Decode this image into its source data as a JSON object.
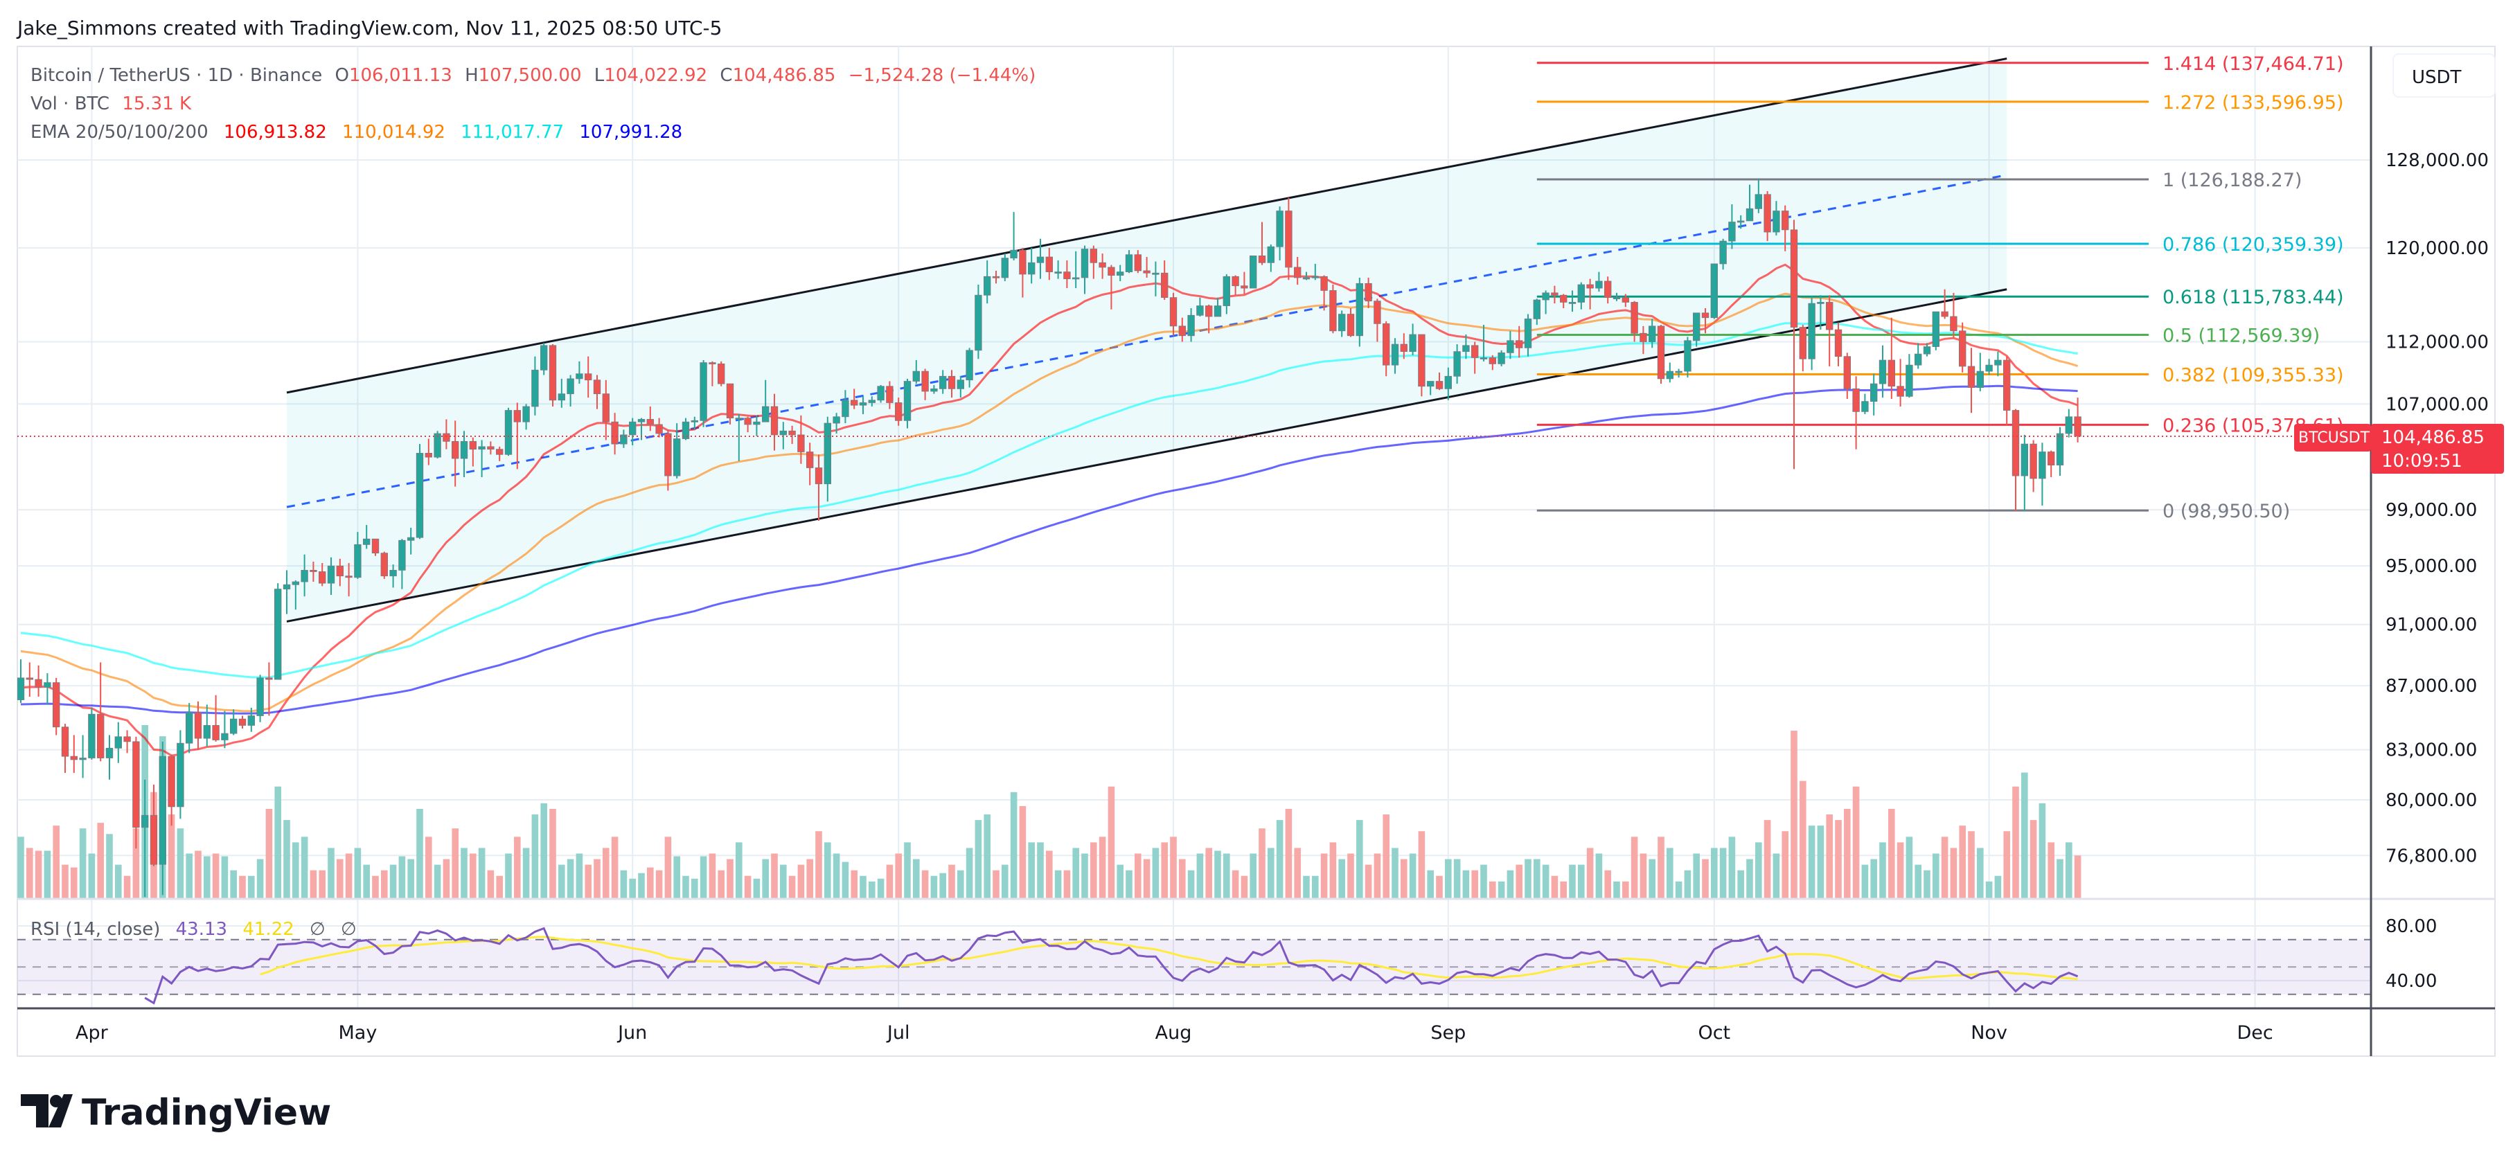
{
  "header": {
    "attribution": "Jake_Simmons created with TradingView.com, Nov 11, 2025 08:50 UTC-5"
  },
  "legend": {
    "symbol": "Bitcoin / TetherUS · 1D · Binance",
    "o_label": "O",
    "open": "106,011.13",
    "h_label": "H",
    "high": "107,500.00",
    "l_label": "L",
    "low": "104,022.92",
    "c_label": "C",
    "close": "104,486.85",
    "change": "−1,524.28 (−1.44%)",
    "vol_label": "Vol · BTC",
    "vol": "15.31 K",
    "ema_label": "EMA 20/50/100/200",
    "ema_values": [
      "106,913.82",
      "110,014.92",
      "111,017.77",
      "107,991.28"
    ]
  },
  "colors": {
    "up": "#26a69a",
    "down": "#ef5350",
    "up_volume": "#92d2cc",
    "down_volume": "#f7a9a7",
    "ema": [
      "#ff0000",
      "#ff8000",
      "#00ffff",
      "#0000ff"
    ],
    "legend_red": "#ef5350",
    "rsi": "#7e57c2",
    "rsi_ma": "#ffeb3b",
    "channel": "#131722",
    "channel_mid": "#2962ff",
    "channel_fill": "#00bcd4"
  },
  "price_axis": {
    "currency": "USDT",
    "ticks": [
      {
        "label": "128,000.00",
        "value": 128000
      },
      {
        "label": "120,000.00",
        "value": 120000
      },
      {
        "label": "112,000.00",
        "value": 112000
      },
      {
        "label": "107,000.00",
        "value": 107000
      },
      {
        "label": "99,000.00",
        "value": 99000
      },
      {
        "label": "95,000.00",
        "value": 95000
      },
      {
        "label": "91,000.00",
        "value": 91000
      },
      {
        "label": "87,000.00",
        "value": 87000
      },
      {
        "label": "83,000.00",
        "value": 83000
      },
      {
        "label": "80,000.00",
        "value": 80000
      },
      {
        "label": "76,800.00",
        "value": 76800
      }
    ],
    "last_price": "104,486.85",
    "last_price_value": 104486.85,
    "countdown": "10:09:51",
    "symbol_badge": "BTCUSDT"
  },
  "time_axis": {
    "labels": [
      {
        "label": "Apr",
        "date": "2025-04-01"
      },
      {
        "label": "May",
        "date": "2025-05-01"
      },
      {
        "label": "Jun",
        "date": "2025-06-01"
      },
      {
        "label": "Jul",
        "date": "2025-07-01"
      },
      {
        "label": "Aug",
        "date": "2025-08-01"
      },
      {
        "label": "Sep",
        "date": "2025-09-01"
      },
      {
        "label": "Oct",
        "date": "2025-10-01"
      },
      {
        "label": "Nov",
        "date": "2025-11-01"
      },
      {
        "label": "Dec",
        "date": "2025-12-01"
      }
    ]
  },
  "rsi": {
    "label": "RSI (14, close)",
    "value": "43.13",
    "ma_value": "41.22",
    "na1": "∅",
    "na2": "∅",
    "period": 14,
    "ticks": [
      {
        "label": "80.00",
        "value": 80
      },
      {
        "label": "40.00",
        "value": 40
      }
    ],
    "bands": [
      70,
      50,
      30
    ]
  },
  "drawings": {
    "channel": {
      "upper": [
        {
          "date": "2025-04-23",
          "price": 107900
        },
        {
          "date": "2025-11-03",
          "price": 137900
        }
      ],
      "middle": [
        {
          "date": "2025-04-23",
          "price": 99200
        },
        {
          "date": "2025-11-03",
          "price": 126600
        }
      ],
      "lower": [
        {
          "date": "2025-04-23",
          "price": 91200
        },
        {
          "date": "2025-11-03",
          "price": 116400
        }
      ]
    },
    "fib": {
      "from_date": "2025-09-11",
      "to_date": "2025-11-19",
      "levels": [
        {
          "label": "1.414 (137,464.71)",
          "price": 137464.71,
          "color": "#f23645"
        },
        {
          "label": "1.272 (133,596.95)",
          "price": 133596.95,
          "color": "#ff9800"
        },
        {
          "label": "1 (126,188.27)",
          "price": 126188.27,
          "color": "#787b86"
        },
        {
          "label": "0.786 (120,359.39)",
          "price": 120359.39,
          "color": "#00bcd4"
        },
        {
          "label": "0.618 (115,783.44)",
          "price": 115783.44,
          "color": "#089981"
        },
        {
          "label": "0.5 (112,569.39)",
          "price": 112569.39,
          "color": "#4caf50"
        },
        {
          "label": "0.382 (109,355.33)",
          "price": 109355.33,
          "color": "#ff9800"
        },
        {
          "label": "0.236 (105,378.61)",
          "price": 105378.61,
          "color": "#f23645"
        },
        {
          "label": "0 (98,950.50)",
          "price": 98950.5,
          "color": "#787b86"
        }
      ]
    }
  },
  "chart_data": {
    "type": "candlestick",
    "log_scale": true,
    "ylim": [
      74500,
      140000
    ],
    "grid": true,
    "first_date": "2025-03-24",
    "first_open_k": 86.1,
    "ema_periods": [
      20,
      50,
      100,
      200
    ],
    "close_k": [
      87.5,
      87.4,
      86.9,
      87.2,
      84.4,
      82.6,
      82.4,
      82.5,
      85.2,
      82.5,
      83.1,
      83.8,
      83.5,
      78.4,
      79.1,
      76.3,
      82.6,
      79.6,
      83.4,
      85.3,
      83.7,
      84.5,
      83.6,
      84.0,
      84.9,
      84.5,
      85.1,
      87.5,
      87.4,
      93.4,
      93.7,
      93.9,
      94.7,
      94.6,
      93.8,
      95.0,
      94.3,
      94.2,
      96.5,
      96.9,
      95.9,
      94.3,
      94.7,
      96.8,
      97.0,
      103.2,
      102.9,
      104.7,
      104.1,
      102.8,
      104.1,
      103.5,
      103.7,
      103.5,
      103.1,
      106.5,
      105.6,
      106.8,
      109.7,
      111.7,
      107.3,
      107.8,
      109.0,
      109.4,
      108.9,
      107.8,
      105.6,
      103.9,
      104.6,
      105.6,
      105.8,
      105.4,
      104.7,
      101.5,
      104.3,
      105.6,
      105.7,
      110.3,
      110.2,
      108.6,
      105.9,
      105.9,
      105.4,
      105.6,
      106.8,
      104.6,
      104.9,
      104.6,
      103.3,
      102.1,
      100.9,
      105.5,
      106.0,
      107.3,
      106.9,
      107.1,
      107.3,
      108.4,
      107.1,
      105.7,
      108.8,
      109.6,
      108.0,
      108.2,
      109.2,
      108.2,
      108.9,
      111.3,
      115.9,
      117.5,
      117.4,
      119.1,
      119.8,
      117.7,
      118.7,
      119.2,
      117.9,
      117.9,
      117.3,
      117.4,
      119.9,
      118.7,
      118.3,
      117.6,
      117.9,
      119.4,
      118.0,
      117.8,
      117.8,
      115.7,
      113.3,
      112.5,
      114.2,
      115.0,
      114.1,
      115.0,
      117.5,
      116.7,
      116.5,
      119.3,
      118.7,
      120.1,
      123.3,
      118.3,
      117.4,
      117.4,
      117.5,
      116.3,
      112.9,
      114.3,
      112.5,
      116.9,
      115.4,
      113.5,
      110.1,
      111.8,
      111.2,
      112.6,
      108.4,
      108.8,
      108.2,
      109.2,
      111.2,
      111.7,
      110.7,
      110.7,
      110.2,
      111.1,
      112.1,
      111.5,
      113.9,
      115.5,
      116.1,
      115.9,
      115.3,
      115.3,
      116.8,
      116.5,
      117.1,
      115.7,
      115.7,
      115.3,
      112.7,
      112.0,
      113.3,
      109.0,
      109.6,
      109.6,
      112.1,
      114.4,
      114.0,
      118.6,
      120.6,
      122.3,
      122.4,
      123.5,
      124.8,
      121.4,
      123.3,
      121.6,
      113.2,
      110.6,
      115.2,
      115.3,
      113.0,
      110.8,
      108.2,
      106.4,
      107.2,
      108.6,
      110.5,
      108.4,
      107.6,
      110.1,
      111.0,
      111.6,
      114.5,
      114.1,
      112.9,
      110.0,
      108.3,
      109.6,
      110.1,
      110.5,
      106.5,
      101.5,
      103.9,
      101.3,
      103.3,
      102.3,
      104.7,
      106.0,
      104.49
    ],
    "high_k": [
      88.7,
      88.5,
      88.3,
      87.8,
      87.5,
      84.6,
      83.9,
      83.9,
      85.6,
      88.5,
      83.9,
      84.7,
      84.2,
      83.8,
      81.2,
      80.9,
      83.5,
      82.7,
      84.2,
      85.9,
      86.0,
      85.8,
      86.4,
      85.4,
      85.5,
      85.1,
      85.6,
      87.7,
      88.5,
      93.8,
      94.7,
      94.0,
      95.8,
      95.3,
      95.2,
      95.6,
      95.5,
      95.2,
      97.4,
      97.9,
      96.9,
      96.0,
      95.1,
      96.9,
      97.7,
      103.9,
      104.3,
      104.9,
      105.8,
      105.7,
      104.9,
      104.4,
      104.2,
      104.1,
      103.7,
      106.7,
      107.1,
      107.0,
      110.8,
      111.9,
      111.8,
      109.0,
      109.3,
      110.4,
      110.8,
      109.3,
      108.9,
      106.3,
      105.0,
      105.9,
      105.9,
      106.8,
      105.9,
      105.0,
      105.5,
      105.9,
      106.0,
      110.5,
      110.4,
      110.4,
      108.5,
      106.2,
      106.0,
      106.1,
      108.9,
      107.8,
      105.6,
      105.3,
      106.1,
      104.0,
      103.1,
      106.0,
      106.3,
      108.1,
      108.2,
      107.6,
      107.6,
      108.5,
      108.8,
      107.5,
      109.0,
      110.5,
      109.8,
      108.5,
      109.7,
      109.7,
      109.2,
      111.5,
      116.8,
      118.9,
      118.0,
      119.5,
      123.2,
      120.0,
      120.0,
      120.8,
      120.0,
      118.9,
      118.9,
      119.7,
      120.2,
      120.2,
      119.5,
      118.5,
      118.5,
      119.8,
      119.8,
      119.2,
      118.8,
      118.9,
      116.1,
      114.0,
      114.8,
      115.7,
      115.1,
      115.7,
      117.7,
      117.6,
      117.9,
      119.3,
      122.3,
      120.3,
      123.7,
      124.5,
      119.2,
      117.9,
      118.6,
      117.6,
      116.8,
      114.6,
      114.8,
      117.4,
      117.4,
      115.6,
      113.7,
      112.3,
      112.7,
      113.5,
      112.6,
      108.8,
      109.5,
      109.9,
      111.8,
      112.6,
      112.0,
      113.4,
      110.9,
      111.3,
      112.9,
      113.3,
      114.3,
      115.6,
      116.3,
      116.7,
      116.0,
      116.3,
      117.0,
      117.3,
      117.9,
      117.5,
      116.1,
      116.0,
      115.4,
      113.3,
      113.9,
      113.4,
      110.3,
      109.8,
      112.4,
      114.4,
      114.8,
      118.6,
      120.8,
      123.9,
      122.9,
      125.7,
      126.2,
      125.1,
      124.2,
      123.8,
      122.5,
      113.4,
      115.8,
      115.9,
      115.9,
      113.6,
      111.1,
      109.2,
      107.8,
      109.4,
      111.7,
      114.0,
      110.6,
      111.0,
      111.9,
      111.9,
      114.5,
      116.4,
      116.1,
      113.6,
      111.5,
      111.1,
      110.6,
      111.2,
      110.8,
      106.6,
      104.6,
      104.2,
      104.0,
      103.4,
      105.2,
      106.6,
      107.5
    ],
    "low_k": [
      85.9,
      86.3,
      86.3,
      85.8,
      83.9,
      81.6,
      81.6,
      81.3,
      82.4,
      82.3,
      81.2,
      82.2,
      82.8,
      77.2,
      74.5,
      76.2,
      74.6,
      78.5,
      78.9,
      82.8,
      83.0,
      83.2,
      83.5,
      83.1,
      83.9,
      84.3,
      84.1,
      84.7,
      85.1,
      87.4,
      91.7,
      92.0,
      92.9,
      93.9,
      93.6,
      93.0,
      93.6,
      92.9,
      94.1,
      96.2,
      95.7,
      94.1,
      93.5,
      93.4,
      95.8,
      96.9,
      102.3,
      102.8,
      103.5,
      100.7,
      101.4,
      102.2,
      101.4,
      103.1,
      102.6,
      103.0,
      102.0,
      105.0,
      106.1,
      109.3,
      106.8,
      106.7,
      106.8,
      108.6,
      107.5,
      106.6,
      104.2,
      103.1,
      103.6,
      103.8,
      104.2,
      104.9,
      104.4,
      100.4,
      101.3,
      104.2,
      105.0,
      105.2,
      108.4,
      108.4,
      105.4,
      102.6,
      104.8,
      104.5,
      105.6,
      103.4,
      103.5,
      103.9,
      102.4,
      100.8,
      98.2,
      99.6,
      104.7,
      105.5,
      106.6,
      106.2,
      106.8,
      107.1,
      106.6,
      105.3,
      105.1,
      108.6,
      107.3,
      107.8,
      107.8,
      107.5,
      107.5,
      108.3,
      110.6,
      115.2,
      116.9,
      117.1,
      118.9,
      115.7,
      116.9,
      117.3,
      117.2,
      117.3,
      116.5,
      116.5,
      116.0,
      117.3,
      117.3,
      114.7,
      117.1,
      117.8,
      117.8,
      117.4,
      115.8,
      115.5,
      112.5,
      112.0,
      112.0,
      114.1,
      112.7,
      114.1,
      114.3,
      115.9,
      116.0,
      116.5,
      118.5,
      117.9,
      118.9,
      117.2,
      116.8,
      117.2,
      117.2,
      114.6,
      112.7,
      112.4,
      112.4,
      111.6,
      114.8,
      112.0,
      109.2,
      109.4,
      110.6,
      110.9,
      107.6,
      107.7,
      108.1,
      107.3,
      108.6,
      110.6,
      109.4,
      110.4,
      109.7,
      110.0,
      110.6,
      110.7,
      110.8,
      113.4,
      114.3,
      115.2,
      114.8,
      114.5,
      114.7,
      114.7,
      116.2,
      115.2,
      115.4,
      114.9,
      112.0,
      111.0,
      111.5,
      108.6,
      108.7,
      109.1,
      109.1,
      111.6,
      112.7,
      113.9,
      118.1,
      119.9,
      121.7,
      122.4,
      123.1,
      120.6,
      121.1,
      119.7,
      102.0,
      109.6,
      109.7,
      113.0,
      110.0,
      110.0,
      107.4,
      103.5,
      106.2,
      106.1,
      107.5,
      107.4,
      106.8,
      107.5,
      109.8,
      110.8,
      111.3,
      113.9,
      112.3,
      109.5,
      106.3,
      108.0,
      109.3,
      109.2,
      105.3,
      98.9,
      98.9,
      100.3,
      99.3,
      101.4,
      101.5,
      104.4,
      104.02
    ],
    "volume_k": [
      22,
      18,
      17,
      17,
      26,
      12,
      11,
      25,
      16,
      27,
      23,
      12,
      8,
      25,
      62,
      38,
      58,
      30,
      25,
      16,
      17,
      15,
      16,
      15,
      10,
      8,
      8,
      14,
      32,
      40,
      28,
      20,
      22,
      10,
      10,
      18,
      14,
      16,
      18,
      12,
      8,
      10,
      12,
      15,
      14,
      32,
      22,
      12,
      14,
      25,
      18,
      16,
      18,
      10,
      8,
      16,
      22,
      18,
      30,
      34,
      32,
      12,
      14,
      16,
      12,
      14,
      18,
      22,
      10,
      7,
      9,
      11,
      10,
      22,
      15,
      8,
      7,
      15,
      16,
      10,
      14,
      20,
      8,
      7,
      14,
      16,
      12,
      8,
      12,
      14,
      24,
      20,
      16,
      13,
      10,
      8,
      6,
      7,
      12,
      16,
      20,
      14,
      10,
      8,
      9,
      12,
      10,
      18,
      28,
      30,
      10,
      12,
      38,
      33,
      20,
      20,
      17,
      10,
      10,
      18,
      16,
      20,
      22,
      40,
      12,
      10,
      16,
      14,
      18,
      20,
      22,
      14,
      10,
      16,
      18,
      17,
      16,
      10,
      8,
      16,
      25,
      18,
      28,
      32,
      18,
      8,
      8,
      16,
      20,
      14,
      16,
      28,
      12,
      16,
      30,
      18,
      14,
      16,
      24,
      10,
      8,
      14,
      14,
      10,
      10,
      12,
      6,
      6,
      10,
      12,
      14,
      14,
      12,
      8,
      6,
      12,
      12,
      18,
      16,
      10,
      6,
      6,
      22,
      16,
      14,
      22,
      18,
      6,
      10,
      16,
      14,
      18,
      18,
      22,
      10,
      14,
      20,
      28,
      16,
      24,
      60,
      42,
      26,
      26,
      30,
      28,
      32,
      40,
      12,
      14,
      20,
      32,
      20,
      22,
      12,
      10,
      16,
      22,
      18,
      26,
      24,
      18,
      6,
      8,
      24,
      40,
      45,
      28,
      34,
      20,
      14,
      20,
      15.31
    ]
  },
  "branding": {
    "logo_text": "TradingView"
  }
}
